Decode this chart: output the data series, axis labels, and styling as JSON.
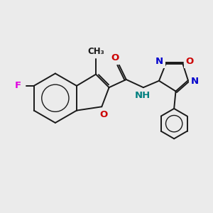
{
  "bg_color": "#ebebeb",
  "bond_color": "#1a1a1a",
  "bond_width": 1.4,
  "dbo": 0.07,
  "atom_colors": {
    "F": "#e000e0",
    "O": "#cc0000",
    "N": "#0000cc",
    "NH": "#008080",
    "C": "#1a1a1a"
  },
  "fs": 9.5
}
